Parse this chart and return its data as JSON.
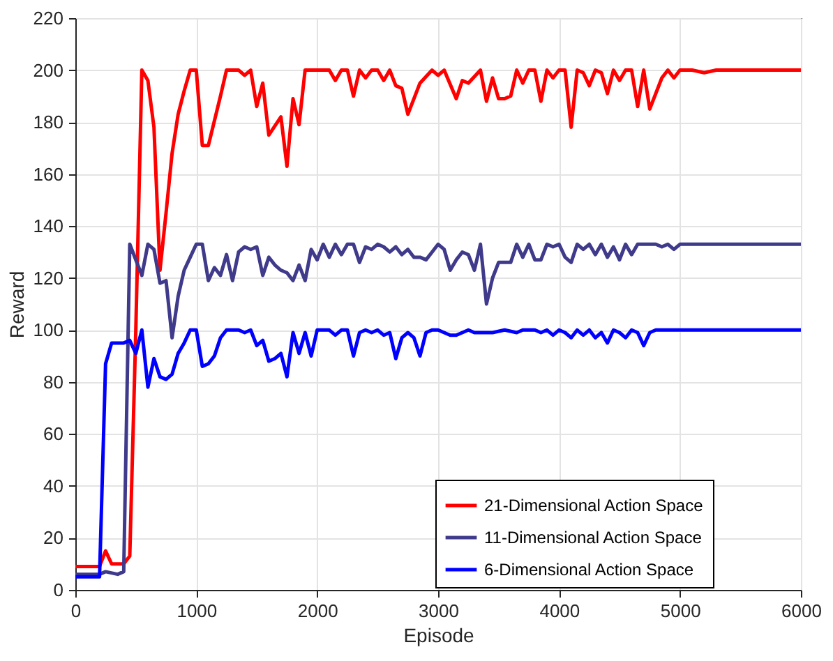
{
  "chart_data": {
    "type": "line",
    "xlabel": "Episode",
    "ylabel": "Reward",
    "xlim": [
      0,
      6000
    ],
    "xticks": [
      0,
      1000,
      2000,
      3000,
      4000,
      5000,
      6000
    ],
    "ylim": [
      0,
      220
    ],
    "yticks": [
      0,
      20,
      40,
      60,
      80,
      100,
      120,
      140,
      160,
      180,
      200,
      220
    ],
    "grid": true,
    "legend": "bottom right",
    "line_style": "solid",
    "series": [
      {
        "name": "21-Dimensional Action Space",
        "color": "#ff0000",
        "x": [
          0,
          100,
          200,
          250,
          300,
          350,
          400,
          450,
          500,
          550,
          600,
          650,
          700,
          750,
          800,
          850,
          900,
          950,
          1000,
          1050,
          1100,
          1200,
          1250,
          1350,
          1400,
          1450,
          1500,
          1550,
          1600,
          1700,
          1750,
          1800,
          1850,
          1900,
          2000,
          2100,
          2150,
          2200,
          2250,
          2300,
          2350,
          2400,
          2450,
          2500,
          2550,
          2600,
          2650,
          2700,
          2750,
          2850,
          2950,
          3000,
          3050,
          3150,
          3200,
          3250,
          3350,
          3400,
          3450,
          3500,
          3550,
          3600,
          3650,
          3700,
          3750,
          3800,
          3850,
          3900,
          3950,
          4000,
          4050,
          4100,
          4150,
          4200,
          4250,
          4300,
          4350,
          4400,
          4450,
          4500,
          4550,
          4600,
          4650,
          4700,
          4750,
          4850,
          4900,
          4950,
          5000,
          5100,
          5200,
          5300,
          6000
        ],
        "values": [
          9,
          9,
          9,
          15,
          10,
          10,
          10,
          13,
          100,
          200,
          196,
          178,
          123,
          145,
          168,
          183,
          192,
          200,
          200,
          171,
          171,
          190,
          200,
          200,
          198,
          200,
          186,
          195,
          175,
          182,
          163,
          189,
          179,
          200,
          200,
          200,
          196,
          200,
          200,
          190,
          200,
          197,
          200,
          200,
          196,
          200,
          194,
          193,
          183,
          195,
          200,
          198,
          200,
          189,
          196,
          195,
          200,
          188,
          197,
          189,
          189,
          190,
          200,
          195,
          200,
          200,
          188,
          200,
          197,
          200,
          200,
          178,
          200,
          199,
          194,
          200,
          199,
          191,
          200,
          196,
          200,
          200,
          186,
          200,
          185,
          197,
          200,
          197,
          200,
          200,
          199,
          200,
          200
        ]
      },
      {
        "name": "11-Dimensional Action Space",
        "color": "#3f3a8a",
        "x": [
          0,
          200,
          250,
          350,
          400,
          450,
          550,
          600,
          650,
          700,
          750,
          800,
          850,
          900,
          950,
          1000,
          1050,
          1100,
          1150,
          1200,
          1250,
          1300,
          1350,
          1400,
          1450,
          1500,
          1550,
          1600,
          1650,
          1700,
          1750,
          1800,
          1850,
          1900,
          1950,
          2000,
          2050,
          2100,
          2150,
          2200,
          2250,
          2300,
          2350,
          2400,
          2450,
          2500,
          2550,
          2600,
          2650,
          2700,
          2750,
          2800,
          2850,
          2900,
          2950,
          3000,
          3050,
          3100,
          3150,
          3200,
          3250,
          3300,
          3350,
          3400,
          3450,
          3500,
          3550,
          3600,
          3650,
          3700,
          3750,
          3800,
          3850,
          3900,
          3950,
          4000,
          4050,
          4100,
          4150,
          4200,
          4250,
          4300,
          4350,
          4400,
          4450,
          4500,
          4550,
          4600,
          4650,
          4700,
          4800,
          4850,
          4900,
          4950,
          5000,
          5100,
          5200,
          6000
        ],
        "values": [
          6,
          6,
          7,
          6,
          7,
          133,
          121,
          133,
          131,
          118,
          119,
          97,
          113,
          123,
          128,
          133,
          133,
          119,
          124,
          121,
          129,
          119,
          130,
          132,
          131,
          132,
          121,
          128,
          125,
          123,
          122,
          119,
          125,
          119,
          131,
          127,
          133,
          128,
          133,
          129,
          133,
          133,
          126,
          132,
          131,
          133,
          132,
          130,
          132,
          129,
          131,
          128,
          128,
          127,
          130,
          133,
          131,
          123,
          127,
          130,
          129,
          123,
          133,
          110,
          120,
          126,
          126,
          126,
          133,
          128,
          133,
          127,
          127,
          133,
          132,
          133,
          128,
          126,
          133,
          131,
          133,
          129,
          133,
          128,
          132,
          127,
          133,
          129,
          133,
          133,
          133,
          132,
          133,
          131,
          133,
          133,
          133,
          133
        ]
      },
      {
        "name": "6-Dimensional Action Space",
        "color": "#0000ff",
        "x": [
          0,
          200,
          250,
          300,
          350,
          400,
          450,
          500,
          550,
          600,
          650,
          700,
          750,
          800,
          850,
          900,
          950,
          1000,
          1050,
          1100,
          1150,
          1200,
          1250,
          1300,
          1350,
          1400,
          1450,
          1500,
          1550,
          1600,
          1650,
          1700,
          1750,
          1800,
          1850,
          1900,
          1950,
          2000,
          2050,
          2100,
          2150,
          2200,
          2250,
          2300,
          2350,
          2400,
          2450,
          2500,
          2550,
          2600,
          2650,
          2700,
          2750,
          2800,
          2850,
          2900,
          2950,
          3000,
          3050,
          3100,
          3150,
          3200,
          3250,
          3300,
          3350,
          3450,
          3550,
          3650,
          3700,
          3800,
          3850,
          3900,
          3950,
          4000,
          4050,
          4100,
          4150,
          4200,
          4250,
          4300,
          4350,
          4400,
          4450,
          4500,
          4550,
          4600,
          4650,
          4700,
          4750,
          4800,
          4900,
          5000,
          6000
        ],
        "values": [
          5,
          5,
          87,
          95,
          95,
          95,
          96,
          91,
          100,
          78,
          89,
          82,
          81,
          83,
          91,
          95,
          100,
          100,
          86,
          87,
          90,
          97,
          100,
          100,
          100,
          99,
          100,
          94,
          96,
          88,
          89,
          91,
          82,
          99,
          91,
          99,
          90,
          100,
          100,
          100,
          98,
          100,
          100,
          90,
          99,
          100,
          99,
          100,
          98,
          99,
          89,
          97,
          99,
          97,
          90,
          99,
          100,
          100,
          99,
          98,
          98,
          99,
          100,
          99,
          99,
          99,
          100,
          99,
          100,
          100,
          99,
          100,
          98,
          100,
          99,
          97,
          100,
          98,
          100,
          97,
          99,
          95,
          100,
          99,
          97,
          100,
          99,
          94,
          99,
          100,
          100,
          100,
          100
        ]
      }
    ]
  }
}
